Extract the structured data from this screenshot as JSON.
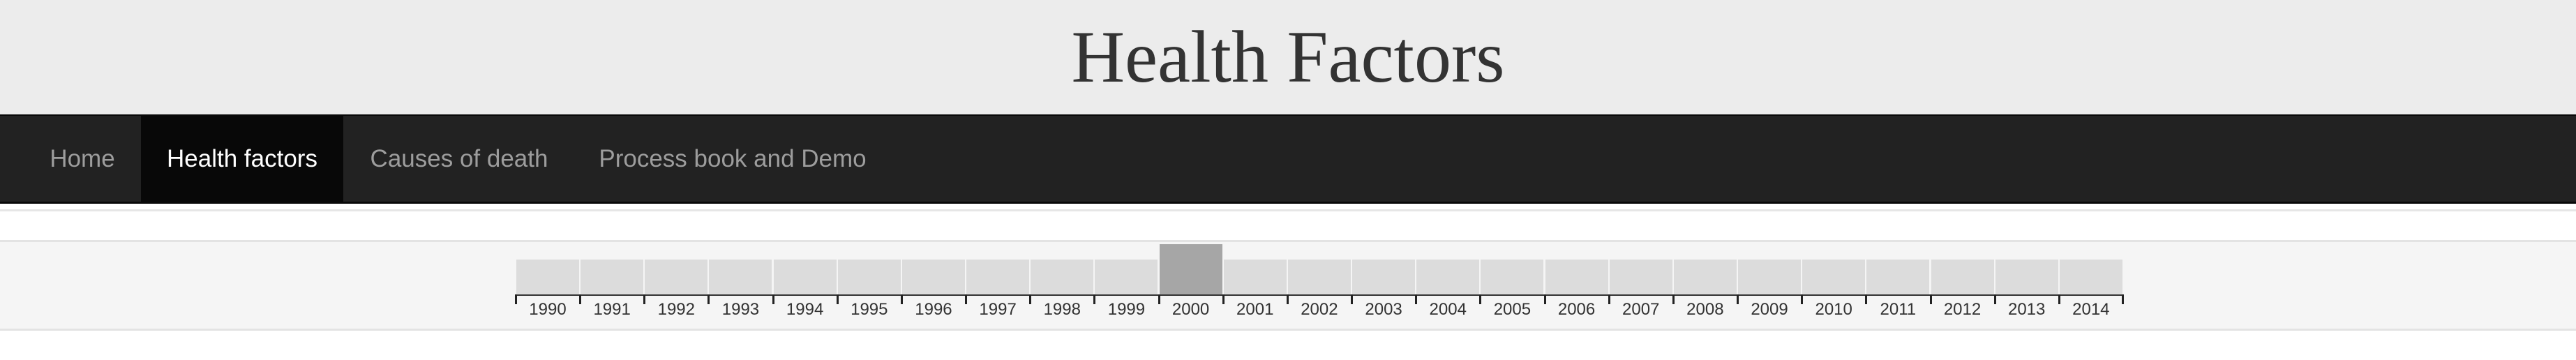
{
  "header": {
    "title": "Health Factors"
  },
  "nav": {
    "items": [
      {
        "label": "Home",
        "active": false
      },
      {
        "label": "Health factors",
        "active": true
      },
      {
        "label": "Causes of death",
        "active": false
      },
      {
        "label": "Process book and Demo",
        "active": false
      }
    ]
  },
  "timeline": {
    "years": [
      "1990",
      "1991",
      "1992",
      "1993",
      "1994",
      "1995",
      "1996",
      "1997",
      "1998",
      "1999",
      "2000",
      "2001",
      "2002",
      "2003",
      "2004",
      "2005",
      "2006",
      "2007",
      "2008",
      "2009",
      "2010",
      "2011",
      "2012",
      "2013",
      "2014"
    ],
    "selected": "2000"
  },
  "colors": {
    "header_bg": "#ececec",
    "navbar_bg": "#222222",
    "nav_active_bg": "#080808",
    "cell": "#dcdcdc",
    "cell_selected": "#a6a6a6"
  }
}
